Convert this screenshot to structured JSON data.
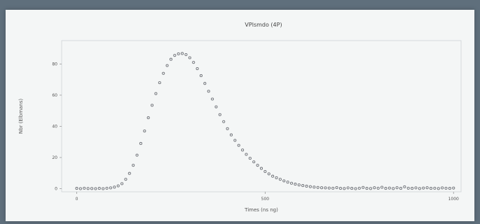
{
  "chart_data": {
    "type": "scatter",
    "title": "VPlsmdo (4P)",
    "xlabel": "Times (ns ng)",
    "ylabel": "Nbr (Elbmans)",
    "xlim": [
      -40,
      1020
    ],
    "ylim": [
      -2,
      95
    ],
    "x_ticks": [
      0,
      500,
      1000
    ],
    "x_tick_labels": [
      "0",
      "500",
      "1000"
    ],
    "y_ticks": [
      0,
      20,
      40,
      60,
      80
    ],
    "y_tick_labels": [
      "0",
      "20",
      "40",
      "60",
      "80"
    ],
    "grid": false,
    "marker_color": "#6f7278",
    "series": [
      {
        "x": [
          0,
          10,
          20,
          30,
          40,
          50,
          60,
          70,
          80,
          90,
          100,
          110,
          120,
          130,
          140,
          150,
          160,
          170,
          180,
          190,
          200,
          210,
          220,
          230,
          240,
          250,
          260,
          270,
          280,
          290,
          300,
          310,
          320,
          330,
          340,
          350,
          360,
          370,
          380,
          390,
          400,
          410,
          420,
          430,
          440,
          450,
          460,
          470,
          480,
          490,
          500,
          510,
          520,
          530,
          540,
          550,
          560,
          570,
          580,
          590,
          600,
          610,
          620,
          630,
          640,
          650,
          660,
          670,
          680,
          690,
          700,
          710,
          720,
          730,
          740,
          750,
          760,
          770,
          780,
          790,
          800,
          810,
          820,
          830,
          840,
          850,
          860,
          870,
          880,
          890,
          900,
          910,
          920,
          930,
          940,
          950,
          960,
          970,
          980,
          990,
          1000
        ],
        "y": [
          0.2,
          0.0,
          0.3,
          0.1,
          0.1,
          0.0,
          0.2,
          0.0,
          0.3,
          0.5,
          1.0,
          1.8,
          3.2,
          6.0,
          9.8,
          15.0,
          21.5,
          29.0,
          37.0,
          45.5,
          53.5,
          61.0,
          68.0,
          74.0,
          79.0,
          83.0,
          85.5,
          86.5,
          86.7,
          86.0,
          84.0,
          81.0,
          77.0,
          72.5,
          67.5,
          62.5,
          57.5,
          52.5,
          47.5,
          43.0,
          38.5,
          34.5,
          31.0,
          27.8,
          24.8,
          22.0,
          19.5,
          17.2,
          15.0,
          13.0,
          11.0,
          9.5,
          8.0,
          7.0,
          6.0,
          5.0,
          4.2,
          3.5,
          2.9,
          2.4,
          2.0,
          1.6,
          1.3,
          1.0,
          0.8,
          0.6,
          0.5,
          0.4,
          0.3,
          0.7,
          0.2,
          0.1,
          0.5,
          0.2,
          0.0,
          0.3,
          0.8,
          0.2,
          0.1,
          0.6,
          0.3,
          0.9,
          0.2,
          0.4,
          0.1,
          0.6,
          0.2,
          1.2,
          0.3,
          0.2,
          0.5,
          0.1,
          0.4,
          0.6,
          0.2,
          0.3,
          0.1,
          0.5,
          0.3,
          0.2,
          0.4
        ]
      }
    ]
  }
}
